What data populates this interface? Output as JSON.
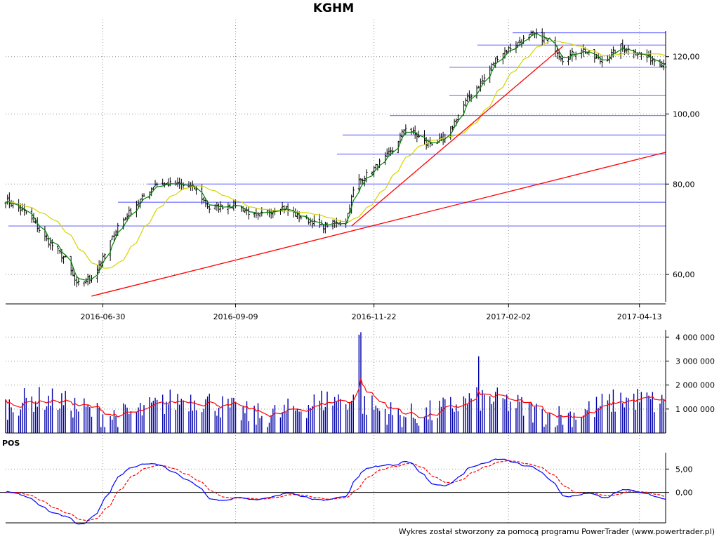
{
  "title": "KGHM",
  "pos_label": "POS",
  "footer": "Wykres został stworzony za pomocą programu PowerTrader (www.powertrader.pl)",
  "colors": {
    "candle": "#000000",
    "ma_short": "#008000",
    "ma_long": "#d4d400",
    "trendline": "#ff0000",
    "support_resistance": "#8080ff",
    "volume_bar": "#0000aa",
    "volume_ma": "#ff0000",
    "pos_line": "#0000ff",
    "pos_signal": "#ff0000"
  },
  "chart_data": [
    {
      "type": "ohlc",
      "name": "price",
      "title": "KGHM",
      "x_ticks": [
        "2016-06-30",
        "2016-09-09",
        "2016-11-22",
        "2017-02-02",
        "2017-04-13"
      ],
      "y_ticks": [
        "60,00",
        "80,00",
        "100,00",
        "120,00"
      ],
      "y_tick_values": [
        60,
        80,
        100,
        120
      ],
      "y_scale": "log",
      "ylim": [
        55,
        135
      ],
      "x_range": [
        "2016-05-09",
        "2017-04-27"
      ],
      "close_series": [
        {
          "date": "2016-05-09",
          "close": 76.0
        },
        {
          "date": "2016-05-20",
          "close": 73.0
        },
        {
          "date": "2016-05-31",
          "close": 67.0
        },
        {
          "date": "2016-06-10",
          "close": 63.0
        },
        {
          "date": "2016-06-16",
          "close": 58.0
        },
        {
          "date": "2016-06-24",
          "close": 59.5
        },
        {
          "date": "2016-06-30",
          "close": 63.0
        },
        {
          "date": "2016-07-08",
          "close": 70.0
        },
        {
          "date": "2016-07-18",
          "close": 75.0
        },
        {
          "date": "2016-07-28",
          "close": 80.0
        },
        {
          "date": "2016-08-08",
          "close": 80.0
        },
        {
          "date": "2016-08-18",
          "close": 79.0
        },
        {
          "date": "2016-08-26",
          "close": 74.0
        },
        {
          "date": "2016-09-09",
          "close": 75.0
        },
        {
          "date": "2016-09-20",
          "close": 72.0
        },
        {
          "date": "2016-10-03",
          "close": 74.5
        },
        {
          "date": "2016-10-14",
          "close": 72.0
        },
        {
          "date": "2016-10-25",
          "close": 70.0
        },
        {
          "date": "2016-11-07",
          "close": 71.0
        },
        {
          "date": "2016-11-12",
          "close": 80.0
        },
        {
          "date": "2016-11-22",
          "close": 84.0
        },
        {
          "date": "2016-12-02",
          "close": 89.0
        },
        {
          "date": "2016-12-09",
          "close": 96.0
        },
        {
          "date": "2016-12-20",
          "close": 91.0
        },
        {
          "date": "2016-12-30",
          "close": 92.0
        },
        {
          "date": "2017-01-10",
          "close": 104.0
        },
        {
          "date": "2017-01-20",
          "close": 112.0
        },
        {
          "date": "2017-01-27",
          "close": 120.0
        },
        {
          "date": "2017-02-02",
          "close": 123.0
        },
        {
          "date": "2017-02-15",
          "close": 129.0
        },
        {
          "date": "2017-02-24",
          "close": 126.0
        },
        {
          "date": "2017-03-03",
          "close": 119.0
        },
        {
          "date": "2017-03-13",
          "close": 123.0
        },
        {
          "date": "2017-03-24",
          "close": 118.0
        },
        {
          "date": "2017-04-03",
          "close": 124.0
        },
        {
          "date": "2017-04-13",
          "close": 121.0
        },
        {
          "date": "2017-04-27",
          "close": 117.0
        }
      ],
      "horizontal_levels": [
        70.0,
        75.5,
        80.0,
        88.0,
        93.5,
        99.5,
        106.0,
        116.0,
        124.5,
        129.5
      ],
      "trendlines": [
        {
          "from": {
            "date": "2016-06-24",
            "value": 56.0
          },
          "to": {
            "date": "2017-04-27",
            "value": 88.5
          }
        },
        {
          "from": {
            "date": "2016-11-10",
            "value": 70.0
          },
          "to": {
            "date": "2017-03-03",
            "value": 124.0
          }
        }
      ]
    },
    {
      "type": "bar",
      "name": "volume",
      "y_ticks": [
        "1 000 000",
        "2 000 000",
        "3 000 000",
        "4 000 000"
      ],
      "y_tick_values": [
        1000000,
        2000000,
        3000000,
        4000000
      ],
      "ylim": [
        0,
        4300000
      ],
      "notable_values": [
        {
          "date": "2016-11-14",
          "value": 4100000
        },
        {
          "date": "2016-11-15",
          "value": 4200000
        },
        {
          "date": "2017-01-17",
          "value": 3200000
        }
      ]
    },
    {
      "type": "line",
      "name": "POS",
      "title": "POS",
      "y_ticks": [
        "0,00",
        "5,00"
      ],
      "y_tick_values": [
        0,
        5
      ],
      "ylim": [
        -6.5,
        8.5
      ]
    }
  ]
}
